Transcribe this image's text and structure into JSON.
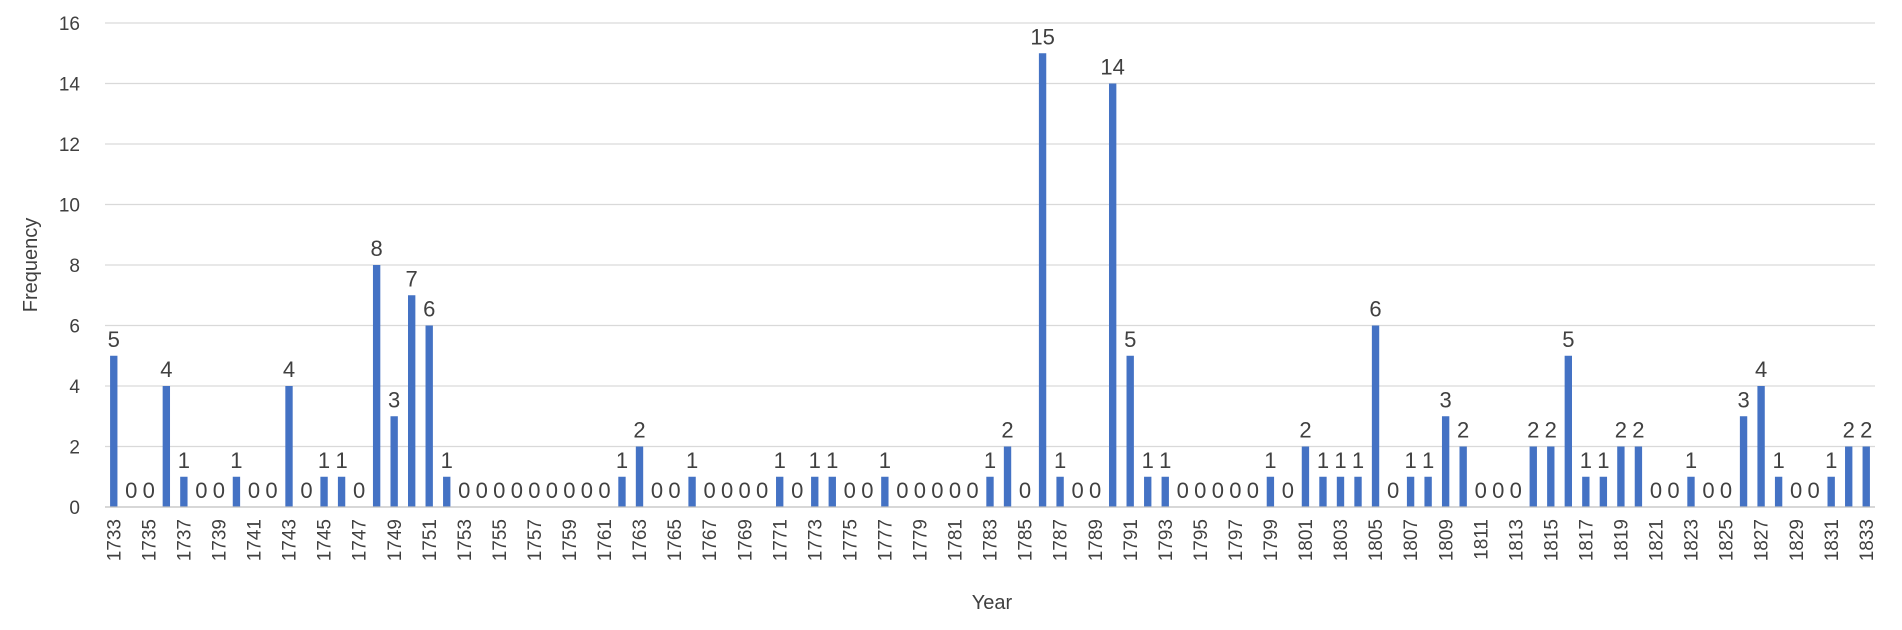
{
  "chart_data": {
    "type": "bar",
    "xlabel": "Year",
    "ylabel": "Frequency",
    "ylim": [
      0,
      16
    ],
    "yticks": [
      0,
      2,
      4,
      6,
      8,
      10,
      12,
      14,
      16
    ],
    "grid": true,
    "bar_color": "#4472C4",
    "categories": [
      "1733",
      "1734",
      "1735",
      "1736",
      "1737",
      "1738",
      "1739",
      "1740",
      "1741",
      "1742",
      "1743",
      "1744",
      "1745",
      "1746",
      "1747",
      "1748",
      "1749",
      "1750",
      "1751",
      "1752",
      "1753",
      "1754",
      "1755",
      "1756",
      "1757",
      "1758",
      "1759",
      "1760",
      "1761",
      "1762",
      "1763",
      "1764",
      "1765",
      "1766",
      "1767",
      "1768",
      "1769",
      "1770",
      "1771",
      "1772",
      "1773",
      "1774",
      "1775",
      "1776",
      "1777",
      "1778",
      "1779",
      "1780",
      "1781",
      "1782",
      "1783",
      "1784",
      "1785",
      "1786",
      "1787",
      "1788",
      "1789",
      "1790",
      "1791",
      "1792",
      "1793",
      "1794",
      "1795",
      "1796",
      "1797",
      "1798",
      "1799",
      "1800",
      "1801",
      "1802",
      "1803",
      "1804",
      "1805",
      "1806",
      "1807",
      "1808",
      "1809",
      "1810",
      "1811",
      "1812",
      "1813",
      "1814",
      "1815",
      "1816",
      "1817",
      "1818",
      "1819",
      "1820",
      "1821",
      "1822",
      "1823",
      "1824",
      "1825",
      "1826",
      "1827",
      "1828",
      "1829",
      "1830",
      "1831",
      "1832",
      "1833"
    ],
    "x_tick_labels": [
      "1733",
      "1735",
      "1737",
      "1739",
      "1741",
      "1743",
      "1745",
      "1747",
      "1749",
      "1751",
      "1753",
      "1755",
      "1757",
      "1759",
      "1761",
      "1763",
      "1765",
      "1767",
      "1769",
      "1771",
      "1773",
      "1775",
      "1777",
      "1779",
      "1781",
      "1783",
      "1785",
      "1787",
      "1789",
      "1791",
      "1793",
      "1795",
      "1797",
      "1799",
      "1801",
      "1803",
      "1805",
      "1807",
      "1809",
      "1811",
      "1813",
      "1815",
      "1817",
      "1819",
      "1821",
      "1823",
      "1825",
      "1827",
      "1829",
      "1831",
      "1833"
    ],
    "values": [
      5,
      0,
      0,
      4,
      1,
      0,
      0,
      1,
      0,
      0,
      4,
      0,
      1,
      1,
      0,
      8,
      3,
      7,
      6,
      1,
      0,
      0,
      0,
      0,
      0,
      0,
      0,
      0,
      0,
      1,
      2,
      0,
      0,
      1,
      0,
      0,
      0,
      0,
      1,
      0,
      1,
      1,
      0,
      0,
      1,
      0,
      0,
      0,
      0,
      0,
      1,
      2,
      0,
      15,
      1,
      0,
      0,
      14,
      5,
      1,
      1,
      0,
      0,
      0,
      0,
      0,
      1,
      0,
      2,
      1,
      1,
      1,
      6,
      0,
      1,
      1,
      3,
      2,
      0,
      0,
      0,
      2,
      2,
      5,
      1,
      1,
      2,
      2,
      0,
      0,
      1,
      0,
      0,
      3,
      4,
      1,
      0,
      0,
      1,
      2,
      2
    ]
  }
}
